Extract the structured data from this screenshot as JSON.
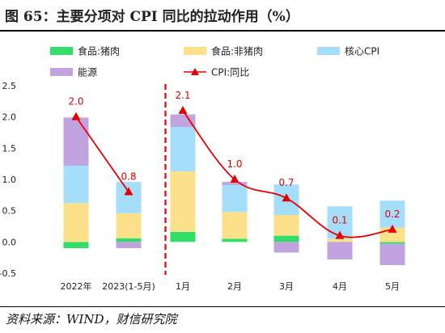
{
  "title": "图 65：主要分项对 CPI 同比的拉动作用（%）",
  "source": "资料来源：WIND，财信研究院",
  "colors": {
    "pork": "#33dd6a",
    "nonpork": "#fde08a",
    "core": "#a4defa",
    "energy": "#c1a3e0",
    "cpi": "#e60000",
    "divider": "#e60000",
    "label": "#e60000"
  },
  "chart_data": {
    "type": "bar",
    "stacked": true,
    "categories": [
      "2022年",
      "2023(1-5月)",
      "1月",
      "2月",
      "3月",
      "4月",
      "5月"
    ],
    "ylim": [
      -0.5,
      2.5
    ],
    "yticks": [
      "-0.5",
      "0.0",
      "0.5",
      "1.0",
      "1.5",
      "2.0",
      "2.5"
    ],
    "ytick_values": [
      -0.5,
      0.0,
      0.5,
      1.0,
      1.5,
      2.0,
      2.5
    ],
    "divider_after_index": 1,
    "legend": [
      {
        "name": "食品:猪肉",
        "key": "pork",
        "kind": "swatch"
      },
      {
        "name": "食品:非猪肉",
        "key": "nonpork",
        "kind": "swatch"
      },
      {
        "name": "核心CPI",
        "key": "core",
        "kind": "swatch"
      },
      {
        "name": "能源",
        "key": "energy",
        "kind": "swatch"
      },
      {
        "name": "CPI:同比",
        "key": "cpi",
        "kind": "line"
      }
    ],
    "series": [
      {
        "name": "食品:猪肉",
        "key": "pork",
        "values": [
          -0.1,
          0.06,
          0.16,
          0.05,
          0.1,
          0.0,
          -0.03
        ]
      },
      {
        "name": "食品:非猪肉",
        "key": "nonpork",
        "values": [
          0.62,
          0.4,
          0.97,
          0.43,
          0.33,
          0.05,
          0.23
        ]
      },
      {
        "name": "核心CPI",
        "key": "core",
        "values": [
          0.6,
          0.5,
          0.71,
          0.43,
          0.49,
          0.52,
          0.43
        ]
      },
      {
        "name": "能源",
        "key": "energy",
        "values": [
          0.77,
          -0.1,
          0.2,
          0.05,
          -0.17,
          -0.28,
          -0.34
        ]
      }
    ],
    "cpi_line": {
      "name": "CPI:同比",
      "values": [
        2.0,
        0.8,
        2.1,
        1.0,
        0.7,
        0.1,
        0.2
      ],
      "labels": [
        "2.0",
        "0.8",
        "2.1",
        "1.0",
        "0.7",
        "0.1",
        "0.2"
      ]
    }
  }
}
